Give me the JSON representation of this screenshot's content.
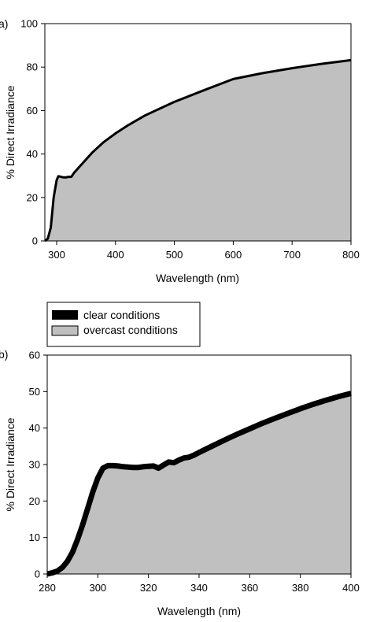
{
  "legend": {
    "items": [
      {
        "label": "clear conditions",
        "color": "#000000",
        "style": "thick-line"
      },
      {
        "label": "overcast conditions",
        "color": "#c0c0c0",
        "style": "filled-area"
      }
    ]
  },
  "chart_data": [
    {
      "panel": "a)",
      "type": "area",
      "xlabel": "Wavelength (nm)",
      "ylabel": "% Direct Irradiance",
      "xlim": [
        280,
        800
      ],
      "ylim": [
        0,
        100
      ],
      "xticks": [
        300,
        400,
        500,
        600,
        700,
        800
      ],
      "yticks": [
        0,
        20,
        40,
        60,
        80,
        100
      ],
      "grid": false,
      "series": [
        {
          "name": "clear conditions",
          "color": "#000000",
          "x": [
            280,
            285,
            290,
            295,
            300,
            303,
            306,
            310,
            315,
            320,
            325,
            330,
            340,
            350,
            360,
            380,
            400,
            420,
            450,
            500,
            550,
            600,
            650,
            700,
            750,
            800
          ],
          "y": [
            0,
            1,
            6,
            20,
            28,
            29.8,
            29.6,
            29.3,
            29.2,
            29.5,
            29.5,
            31.5,
            34.5,
            37.5,
            40.5,
            45.5,
            49.5,
            53,
            57.7,
            64,
            69.3,
            74.5,
            77.2,
            79.5,
            81.5,
            83.2
          ]
        },
        {
          "name": "overcast conditions",
          "color": "#c0c0c0",
          "x": [
            280,
            285,
            290,
            295,
            300,
            303,
            306,
            310,
            315,
            320,
            325,
            330,
            340,
            350,
            360,
            380,
            400,
            420,
            450,
            500,
            550,
            600,
            650,
            700,
            750,
            800
          ],
          "y": [
            0,
            1,
            6,
            20,
            28,
            29.8,
            29.6,
            29.3,
            29.2,
            29.5,
            29.5,
            31.5,
            34.5,
            37.5,
            40.5,
            45.5,
            49.5,
            53,
            57.7,
            64,
            69.3,
            74.5,
            77.2,
            79.5,
            81.5,
            83.2
          ]
        }
      ]
    },
    {
      "panel": "b)",
      "type": "area",
      "xlabel": "Wavelength (nm)",
      "ylabel": "% Direct Irradiance",
      "xlim": [
        280,
        400
      ],
      "ylim": [
        0,
        60
      ],
      "xticks": [
        280,
        300,
        320,
        340,
        360,
        380,
        400
      ],
      "yticks": [
        0,
        10,
        20,
        30,
        40,
        50,
        60
      ],
      "grid": false,
      "series": [
        {
          "name": "clear conditions",
          "color": "#000000",
          "x": [
            280,
            282,
            284,
            286,
            288,
            290,
            292,
            294,
            296,
            298,
            300,
            302,
            304,
            306,
            308,
            310,
            312,
            314,
            316,
            318,
            320,
            322,
            324,
            326,
            328,
            330,
            332,
            334,
            336,
            338,
            340,
            345,
            350,
            355,
            360,
            365,
            370,
            375,
            380,
            385,
            390,
            395,
            400
          ],
          "y": [
            0,
            0.3,
            0.8,
            1.8,
            3.5,
            6,
            9.5,
            13.5,
            18,
            22.5,
            26.3,
            29,
            29.7,
            29.7,
            29.6,
            29.4,
            29.3,
            29.2,
            29.2,
            29.4,
            29.5,
            29.6,
            29,
            29.9,
            30.7,
            30.5,
            31.2,
            31.8,
            32,
            32.6,
            33.3,
            35,
            36.7,
            38.3,
            39.8,
            41.3,
            42.7,
            44,
            45.3,
            46.5,
            47.6,
            48.6,
            49.5
          ]
        },
        {
          "name": "overcast conditions",
          "color": "#c0c0c0",
          "x": [
            280,
            282,
            284,
            286,
            288,
            290,
            292,
            294,
            296,
            298,
            300,
            302,
            304,
            306,
            308,
            310,
            312,
            314,
            316,
            318,
            320,
            322,
            324,
            326,
            328,
            330,
            332,
            334,
            336,
            338,
            340,
            345,
            350,
            355,
            360,
            365,
            370,
            375,
            380,
            385,
            390,
            395,
            400
          ],
          "y": [
            0,
            0.3,
            0.8,
            1.8,
            3.5,
            6,
            9.5,
            13.5,
            18,
            22.5,
            26.3,
            29,
            29.7,
            29.7,
            29.6,
            29.4,
            29.3,
            29.2,
            29.2,
            29.4,
            29.5,
            29.6,
            29,
            29.9,
            30.7,
            30.5,
            31.2,
            31.8,
            32,
            32.6,
            33.3,
            35,
            36.7,
            38.3,
            39.8,
            41.3,
            42.7,
            44,
            45.3,
            46.5,
            47.6,
            48.6,
            49.5
          ]
        }
      ]
    }
  ]
}
